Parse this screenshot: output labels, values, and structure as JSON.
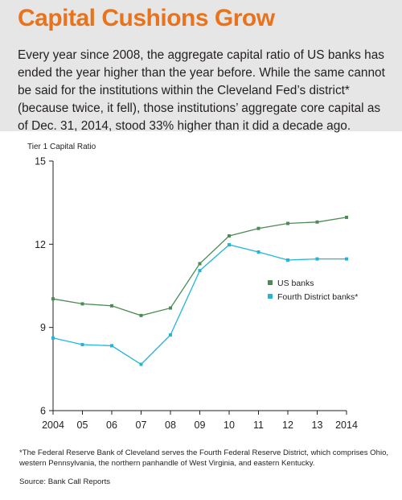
{
  "title": "Capital Cushions Grow",
  "intro": "Every year since 2008, the aggregate capital ratio of US banks has ended the year higher than the year before. While the same cannot be said for the institutions within the Cleveland Fed’s district* (because twice, it fell), those institutions’ aggregate core capital as of Dec. 31, 2014, stood 33% higher than it did a decade ago.",
  "footnote": "*The Federal Reserve Bank of Cleveland serves the Fourth Federal Reserve District, which comprises Ohio, western Pennsylvania, the northern panhandle of West Virginia, and eastern Kentucky.",
  "source": "Source: Bank Call Reports",
  "colors": {
    "title": "#e8731c",
    "us_banks": "#4c8b55",
    "fourth_district": "#22b5da",
    "axis": "#231f20"
  },
  "chart_data": {
    "type": "line",
    "title": "",
    "xlabel": "",
    "ylabel": "Tier 1 Capital Ratio",
    "x": [
      "2004",
      "05",
      "06",
      "07",
      "08",
      "09",
      "10",
      "11",
      "12",
      "13",
      "2014"
    ],
    "ylim": [
      6,
      15
    ],
    "yticks": [
      6,
      9,
      12,
      15
    ],
    "grid": false,
    "legend": "right",
    "series": [
      {
        "name": "US banks",
        "values": [
          10.03,
          9.85,
          9.78,
          9.43,
          9.7,
          11.3,
          12.3,
          12.57,
          12.75,
          12.8,
          12.97
        ]
      },
      {
        "name": "Fourth District banks*",
        "values": [
          8.62,
          8.38,
          8.34,
          7.67,
          8.73,
          11.05,
          11.98,
          11.72,
          11.43,
          11.47,
          11.47
        ]
      }
    ]
  }
}
